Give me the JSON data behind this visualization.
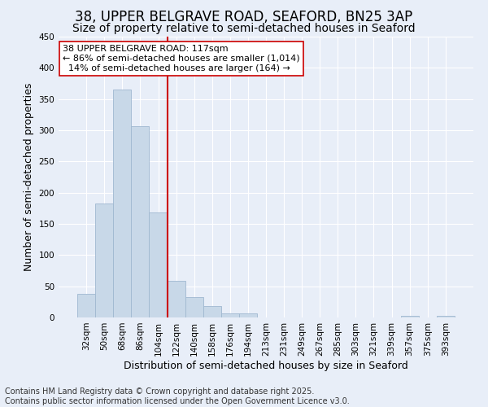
{
  "title": "38, UPPER BELGRAVE ROAD, SEAFORD, BN25 3AP",
  "subtitle": "Size of property relative to semi-detached houses in Seaford",
  "xlabel": "Distribution of semi-detached houses by size in Seaford",
  "ylabel": "Number of semi-detached properties",
  "categories": [
    "32sqm",
    "50sqm",
    "68sqm",
    "86sqm",
    "104sqm",
    "122sqm",
    "140sqm",
    "158sqm",
    "176sqm",
    "194sqm",
    "213sqm",
    "231sqm",
    "249sqm",
    "267sqm",
    "285sqm",
    "303sqm",
    "321sqm",
    "339sqm",
    "357sqm",
    "375sqm",
    "393sqm"
  ],
  "values": [
    38,
    183,
    365,
    307,
    168,
    59,
    32,
    18,
    6,
    6,
    0,
    0,
    0,
    0,
    0,
    0,
    0,
    0,
    3,
    0,
    3
  ],
  "bar_color": "#c8d8e8",
  "bar_edge_color": "#a0b8d0",
  "vline_x_idx": 5,
  "vline_color": "#cc0000",
  "annotation_text_line1": "38 UPPER BELGRAVE ROAD: 117sqm",
  "annotation_text_line2": "← 86% of semi-detached houses are smaller (1,014)",
  "annotation_text_line3": "  14% of semi-detached houses are larger (164) →",
  "annotation_box_color": "#ffffff",
  "annotation_box_edge": "#cc0000",
  "ylim": [
    0,
    450
  ],
  "yticks": [
    0,
    50,
    100,
    150,
    200,
    250,
    300,
    350,
    400,
    450
  ],
  "background_color": "#e8eef8",
  "footer": "Contains HM Land Registry data © Crown copyright and database right 2025.\nContains public sector information licensed under the Open Government Licence v3.0.",
  "title_fontsize": 12,
  "subtitle_fontsize": 10,
  "axis_label_fontsize": 9,
  "tick_fontsize": 7.5,
  "annotation_fontsize": 8,
  "footer_fontsize": 7
}
